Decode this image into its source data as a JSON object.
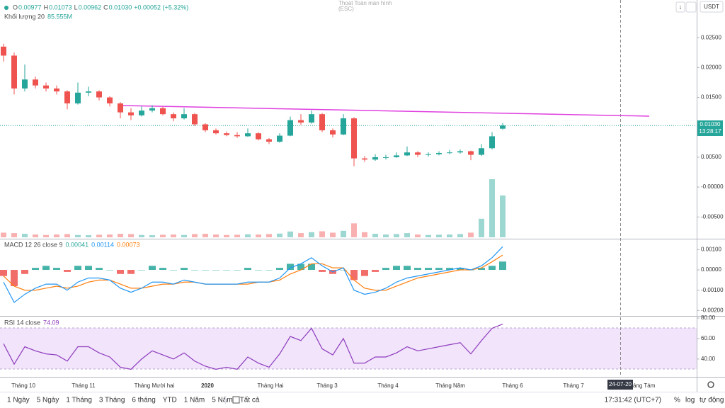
{
  "toolbar": {
    "fullscreen_exit": "Thoát Toàn màn hình",
    "fullscreen_key": "(ESC)",
    "currency": "USDT"
  },
  "legend": {
    "ohlc": [
      {
        "key": "O",
        "value": "0.00977"
      },
      {
        "key": "H",
        "value": "0.01073"
      },
      {
        "key": "L",
        "value": "0.00962"
      },
      {
        "key": "C",
        "value": "0.01030"
      }
    ],
    "change": "+0.00052 (+5.32%)",
    "volume_name": "Khối lượng 20",
    "volume_value": "85.555M"
  },
  "price_pane": {
    "ylim": [
      -0.0084,
      0.0313
    ],
    "yticks": [
      {
        "value": 0.025,
        "label": "0.02500"
      },
      {
        "value": 0.02,
        "label": "0.02000"
      },
      {
        "value": 0.015,
        "label": "0.01500"
      },
      {
        "value": 0.005,
        "label": "0.00500"
      },
      {
        "value": 0,
        "label": "-0.00000"
      },
      {
        "value": -0.005,
        "label": "-0.00500"
      }
    ],
    "last_price": "0.01030",
    "countdown": "13:28:17",
    "candles": [
      [
        0.0235,
        0.024,
        0.021,
        0.022
      ],
      [
        0.022,
        0.0225,
        0.0155,
        0.0165
      ],
      [
        0.0165,
        0.0205,
        0.016,
        0.018
      ],
      [
        0.018,
        0.0185,
        0.0165,
        0.017
      ],
      [
        0.017,
        0.0175,
        0.016,
        0.0165
      ],
      [
        0.0165,
        0.017,
        0.0155,
        0.016
      ],
      [
        0.016,
        0.0162,
        0.013,
        0.014
      ],
      [
        0.014,
        0.0175,
        0.0138,
        0.0158
      ],
      [
        0.0158,
        0.0168,
        0.0152,
        0.016
      ],
      [
        0.016,
        0.0162,
        0.0145,
        0.015
      ],
      [
        0.015,
        0.0152,
        0.0135,
        0.014
      ],
      [
        0.014,
        0.0142,
        0.0115,
        0.0125
      ],
      [
        0.0125,
        0.0132,
        0.0112,
        0.012
      ],
      [
        0.012,
        0.0135,
        0.0118,
        0.0128
      ],
      [
        0.0128,
        0.0137,
        0.0125,
        0.0132
      ],
      [
        0.0132,
        0.0134,
        0.012,
        0.0122
      ],
      [
        0.0122,
        0.0125,
        0.011,
        0.0115
      ],
      [
        0.0115,
        0.0132,
        0.0113,
        0.0122
      ],
      [
        0.0122,
        0.0124,
        0.0102,
        0.0105
      ],
      [
        0.0105,
        0.0107,
        0.0092,
        0.0095
      ],
      [
        0.0095,
        0.0098,
        0.0088,
        0.009
      ],
      [
        0.009,
        0.0093,
        0.0085,
        0.0087
      ],
      [
        0.0087,
        0.0092,
        0.0082,
        0.0085
      ],
      [
        0.0085,
        0.0098,
        0.0084,
        0.009
      ],
      [
        0.009,
        0.0092,
        0.0078,
        0.008
      ],
      [
        0.008,
        0.0082,
        0.0072,
        0.0076
      ],
      [
        0.0076,
        0.009,
        0.0074,
        0.0086
      ],
      [
        0.0086,
        0.0118,
        0.0085,
        0.0112
      ],
      [
        0.0112,
        0.0122,
        0.0104,
        0.0108
      ],
      [
        0.0108,
        0.0128,
        0.0106,
        0.0122
      ],
      [
        0.0122,
        0.0124,
        0.0092,
        0.0095
      ],
      [
        0.0095,
        0.0098,
        0.0083,
        0.0088
      ],
      [
        0.0088,
        0.0122,
        0.0087,
        0.0115
      ],
      [
        0.0115,
        0.0117,
        0.0035,
        0.0048
      ],
      [
        0.0048,
        0.0052,
        0.0042,
        0.0046
      ],
      [
        0.0046,
        0.0055,
        0.0044,
        0.005
      ],
      [
        0.005,
        0.0054,
        0.0046,
        0.005
      ],
      [
        0.005,
        0.0058,
        0.0049,
        0.0053
      ],
      [
        0.0053,
        0.0068,
        0.0052,
        0.0058
      ],
      [
        0.0058,
        0.006,
        0.005,
        0.0054
      ],
      [
        0.0054,
        0.0058,
        0.0051,
        0.0055
      ],
      [
        0.0055,
        0.006,
        0.0053,
        0.0057
      ],
      [
        0.0057,
        0.0062,
        0.0055,
        0.0058
      ],
      [
        0.0058,
        0.0063,
        0.0056,
        0.006
      ],
      [
        0.006,
        0.0061,
        0.0045,
        0.0054
      ],
      [
        0.0054,
        0.0072,
        0.0052,
        0.0065
      ],
      [
        0.0065,
        0.0092,
        0.0063,
        0.0085
      ],
      [
        0.00977,
        0.01073,
        0.00962,
        0.0103
      ]
    ],
    "volume": [
      20,
      18,
      15,
      12,
      10,
      12,
      14,
      10,
      9,
      11,
      12,
      15,
      14,
      10,
      9,
      11,
      12,
      10,
      14,
      15,
      12,
      10,
      11,
      13,
      12,
      14,
      16,
      25,
      18,
      22,
      26,
      20,
      28,
      60,
      22,
      15,
      12,
      14,
      18,
      12,
      10,
      11,
      12,
      14,
      20,
      80,
      250,
      180
    ]
  },
  "macd_pane": {
    "name": "MACD 12 26 close 9",
    "values": [
      "0.00041",
      "0.00114",
      "0.00073"
    ],
    "ylim": [
      -0.00223,
      0.00143
    ],
    "yticks": [
      {
        "value": 0.001,
        "label": "0.00100"
      },
      {
        "value": 0,
        "label": "0.00000"
      },
      {
        "value": -0.001,
        "label": "-0.00100"
      },
      {
        "value": -0.002,
        "label": "-0.00200"
      }
    ],
    "macd": [
      -0.0006,
      -0.0016,
      -0.0012,
      -0.0009,
      -0.0007,
      -0.0007,
      -0.001,
      -0.0006,
      -0.0004,
      -0.0004,
      -0.0005,
      -0.0009,
      -0.0011,
      -0.0009,
      -0.0006,
      -0.0006,
      -0.0007,
      -0.0005,
      -0.0006,
      -0.0007,
      -0.0007,
      -0.0007,
      -0.0007,
      -0.0006,
      -0.0006,
      -0.0006,
      -0.0004,
      0.0001,
      0.0003,
      0.0006,
      0.0002,
      -0.0001,
      0.0001,
      -0.001,
      -0.0012,
      -0.0011,
      -0.0009,
      -0.0006,
      -0.0004,
      -0.0003,
      -0.0002,
      -0.0001,
      0,
      0.0001,
      0,
      0.0002,
      0.0006,
      0.00114
    ],
    "signal": [
      -0.0003,
      -0.0008,
      -0.001,
      -0.001,
      -0.0009,
      -0.0008,
      -0.0009,
      -0.0008,
      -0.0006,
      -0.0005,
      -0.0005,
      -0.0007,
      -0.0009,
      -0.0009,
      -0.0008,
      -0.0007,
      -0.0007,
      -0.0006,
      -0.0006,
      -0.0007,
      -0.0007,
      -0.0007,
      -0.0007,
      -0.0007,
      -0.0006,
      -0.0006,
      -0.0005,
      -0.0002,
      0,
      0.0003,
      0.0003,
      0.0001,
      0.0001,
      -0.0005,
      -0.0009,
      -0.001,
      -0.001,
      -0.0008,
      -0.0006,
      -0.0004,
      -0.0003,
      -0.0002,
      -0.0001,
      0,
      0,
      0.0001,
      0.0004,
      0.00073
    ],
    "histogram": [
      -0.0003,
      -0.0008,
      -0.0002,
      0.0001,
      0.0002,
      0.0001,
      -0.0001,
      0.0002,
      0.0002,
      0.0001,
      0,
      -0.0002,
      -0.0002,
      0,
      0.0002,
      0.0001,
      0,
      0.0001,
      0,
      0,
      0,
      0,
      0,
      0.0001,
      0,
      0,
      0.0001,
      0.0003,
      0.0003,
      0.0003,
      -0.0001,
      -0.0002,
      0,
      -0.0005,
      -0.0003,
      -0.0001,
      0.0001,
      0.0002,
      0.0002,
      0.0001,
      0.0001,
      0.0001,
      0.0001,
      0.0001,
      0,
      0.0001,
      0.0002,
      0.00041
    ]
  },
  "rsi_pane": {
    "name": "RSI 14 close",
    "value": "74.09",
    "ylim": [
      24,
      81.4
    ],
    "yticks": [
      {
        "value": 80,
        "label": "80.00"
      },
      {
        "value": 60,
        "label": "60.00"
      },
      {
        "value": 40,
        "label": "40.00"
      }
    ],
    "values": [
      55,
      35,
      52,
      48,
      45,
      44,
      38,
      52,
      52,
      46,
      42,
      32,
      30,
      40,
      48,
      44,
      40,
      46,
      38,
      33,
      30,
      32,
      30,
      42,
      36,
      32,
      45,
      62,
      58,
      70,
      50,
      44,
      60,
      36,
      36,
      42,
      42,
      46,
      52,
      48,
      50,
      52,
      54,
      56,
      45,
      58,
      70,
      74.09
    ]
  },
  "time_axis": {
    "labels": [
      "Tháng 10",
      "Tháng 11",
      "Tháng Mười hai",
      "2020",
      "Tháng Hai",
      "Tháng 3",
      "Tháng 4",
      "Tháng Năm",
      "Tháng 6",
      "Tháng 7",
      "Tháng Tám"
    ],
    "crosshair_date": "24-07-20"
  },
  "bottom_bar": {
    "ranges": [
      "1 Ngày",
      "5 Ngày",
      "1 Tháng",
      "3 Tháng",
      "6 tháng",
      "YTD",
      "1 Năm",
      "5 Năm",
      "Tất cả"
    ],
    "clock": "17:31:42 (UTC+7)",
    "percent": "%",
    "log": "log",
    "auto": "tự động"
  }
}
